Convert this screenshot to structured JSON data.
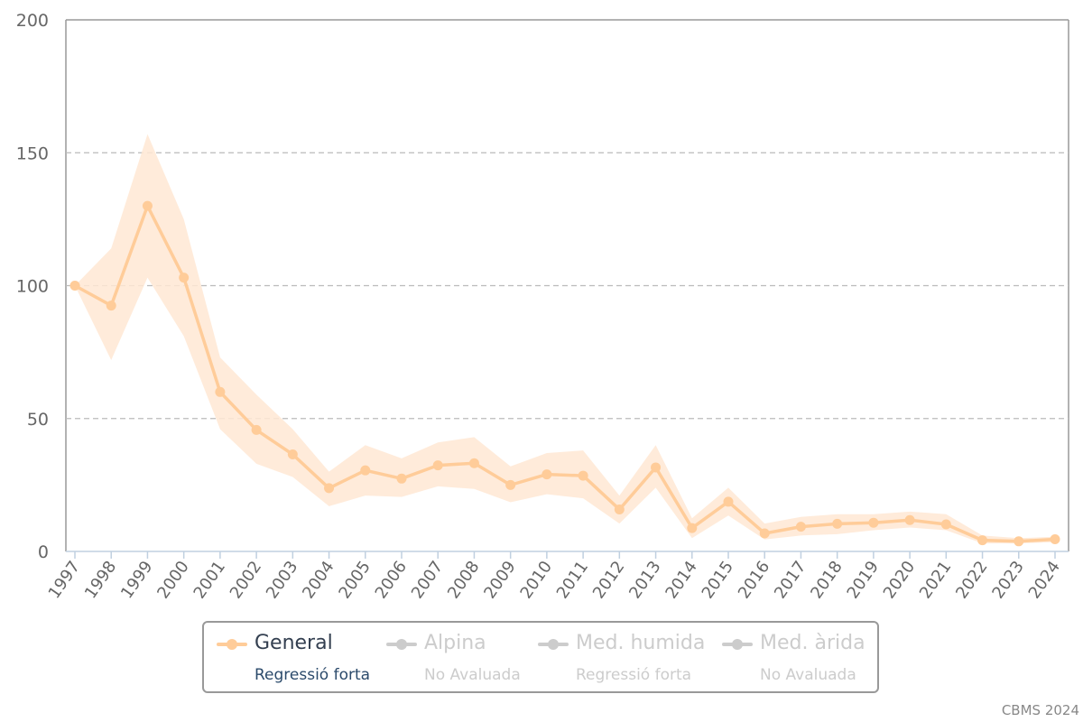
{
  "chart_data": {
    "type": "line",
    "title": "",
    "xlabel": "",
    "ylabel": "",
    "ylim": [
      0,
      200
    ],
    "yticks": [
      "0",
      "50",
      "100",
      "150",
      "200"
    ],
    "grid": true,
    "legend_position": "bottom",
    "x": [
      "1997",
      "1998",
      "1999",
      "2000",
      "2001",
      "2002",
      "2003",
      "2004",
      "2005",
      "2006",
      "2007",
      "2008",
      "2009",
      "2010",
      "2011",
      "2012",
      "2013",
      "2014",
      "2015",
      "2016",
      "2017",
      "2018",
      "2019",
      "2020",
      "2021",
      "2022",
      "2023",
      "2024"
    ],
    "series": [
      {
        "name": "General",
        "status": "Regressió forta",
        "color": "#ffcc99",
        "band_color": "#ffe8d4",
        "active": true,
        "values": [
          100,
          92.5,
          130,
          103,
          60,
          45.7,
          36.5,
          23.8,
          30.5,
          27.4,
          32.4,
          33.2,
          25,
          29,
          28.5,
          15.8,
          31.6,
          8.8,
          18.7,
          6.8,
          9.3,
          10.4,
          10.8,
          11.8,
          10.2,
          4.2,
          3.8,
          4.6
        ],
        "lower": [
          100,
          72,
          103,
          81,
          46,
          33,
          28,
          17,
          21,
          20.5,
          24.5,
          23.5,
          18.5,
          21.5,
          20,
          10.5,
          24,
          5,
          13.5,
          4.5,
          6,
          6.5,
          8,
          9,
          8,
          3,
          3,
          3.5
        ],
        "upper": [
          100,
          114,
          157,
          125,
          73,
          59,
          46,
          30,
          40,
          35,
          41,
          43,
          32,
          37,
          38,
          21,
          40,
          12.5,
          24,
          10.5,
          13,
          14,
          14,
          15,
          14,
          6,
          5,
          5.5
        ]
      },
      {
        "name": "Alpina",
        "status": "No Avaluada",
        "color": "#cccccc",
        "active": false
      },
      {
        "name": "Med. humida",
        "status": "Regressió forta",
        "color": "#cccccc",
        "active": false
      },
      {
        "name": "Med. àrida",
        "status": "No Avaluada",
        "color": "#cccccc",
        "active": false
      }
    ]
  },
  "legend": {
    "active_name_color": "#333f50",
    "active_status_color": "#2b4a6b",
    "inactive_color": "#cccccc"
  },
  "credit": "CBMS 2024"
}
